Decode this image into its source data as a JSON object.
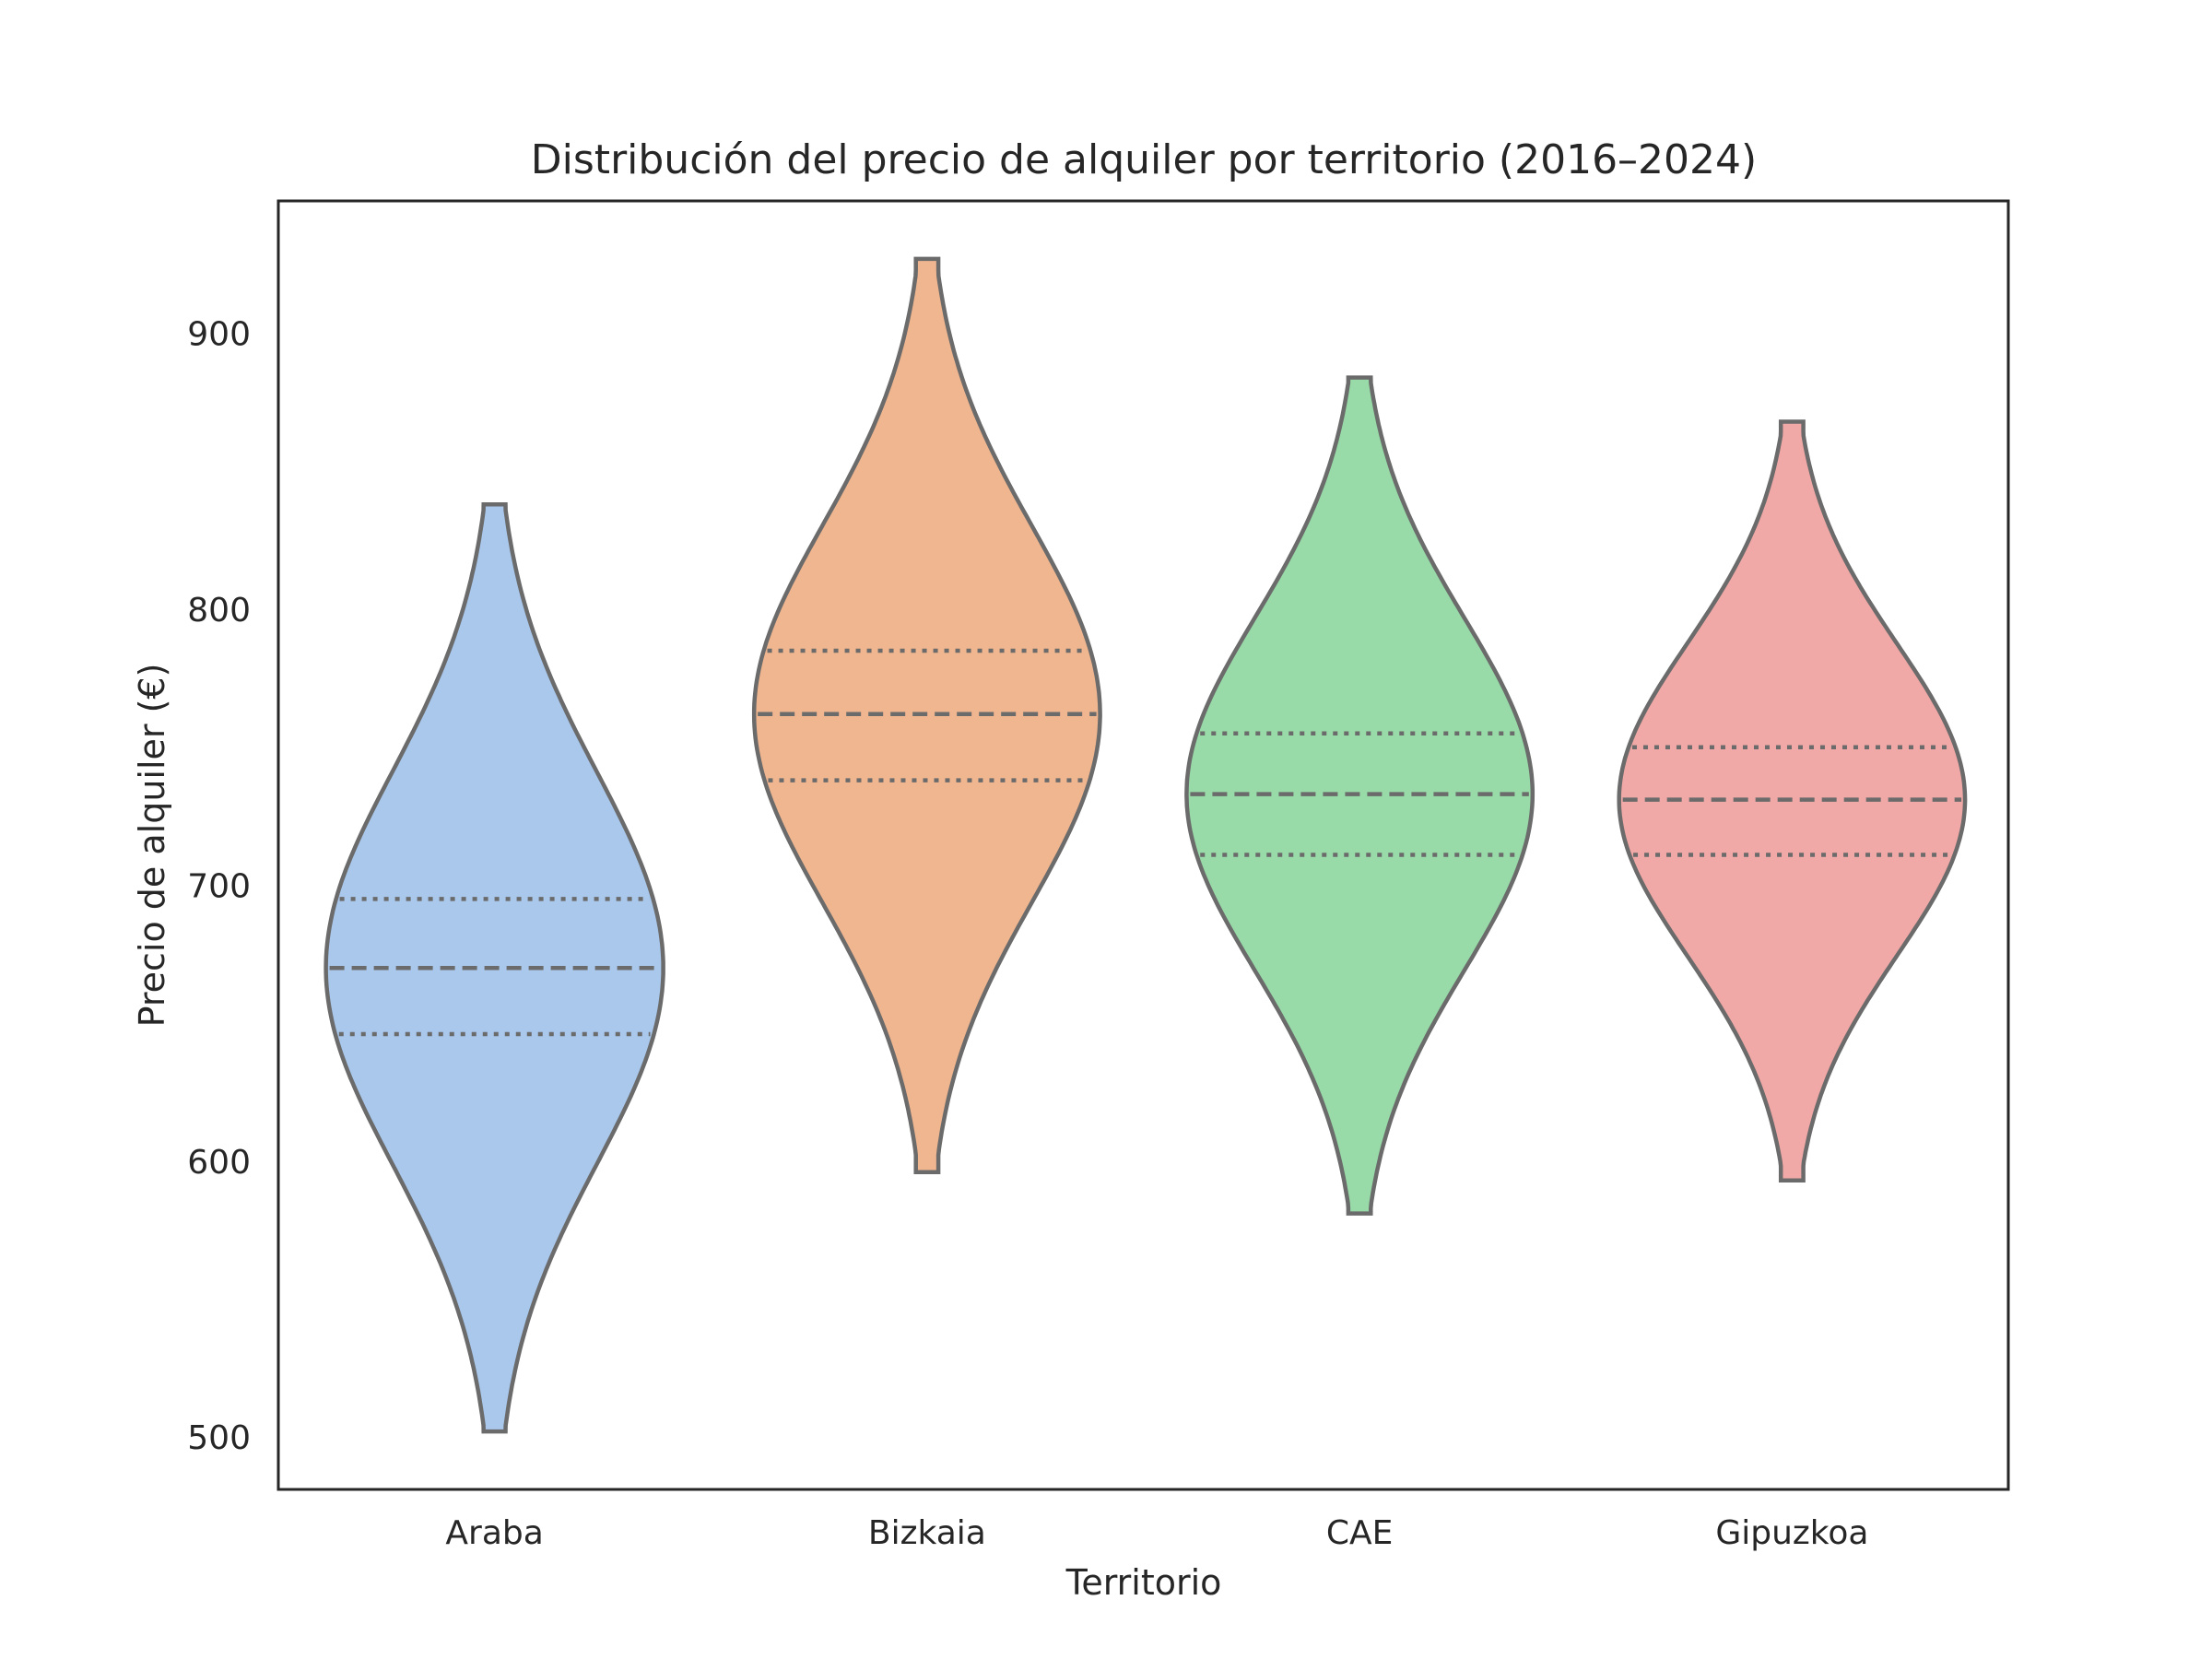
{
  "chart_data": {
    "type": "violin",
    "title": "Distribución del precio de alquiler por territorio (2016–2024)",
    "xlabel": "Territorio",
    "ylabel": "Precio de alquiler (€)",
    "ylim": [
      481,
      948
    ],
    "yticks": [
      500,
      600,
      700,
      800,
      900
    ],
    "categories": [
      "Araba",
      "Bizkaia",
      "CAE",
      "Gipuzkoa"
    ],
    "colors": [
      "#a9c8ec",
      "#f0b690",
      "#98daa8",
      "#f1a9a7"
    ],
    "outline_color": "#6b6b6b",
    "grid": false,
    "violins": [
      {
        "category": "Araba",
        "min": 502,
        "max": 838,
        "q1": 646,
        "median": 670,
        "q3": 695,
        "max_half_width": 0.39
      },
      {
        "category": "Bizkaia",
        "min": 596,
        "max": 927,
        "q1": 738,
        "median": 762,
        "q3": 785,
        "max_half_width": 0.4
      },
      {
        "category": "CAE",
        "min": 581,
        "max": 884,
        "q1": 711,
        "median": 733,
        "q3": 755,
        "max_half_width": 0.4
      },
      {
        "category": "Gipuzkoa",
        "min": 593,
        "max": 868,
        "q1": 711,
        "median": 731,
        "q3": 750,
        "max_half_width": 0.4
      }
    ]
  }
}
